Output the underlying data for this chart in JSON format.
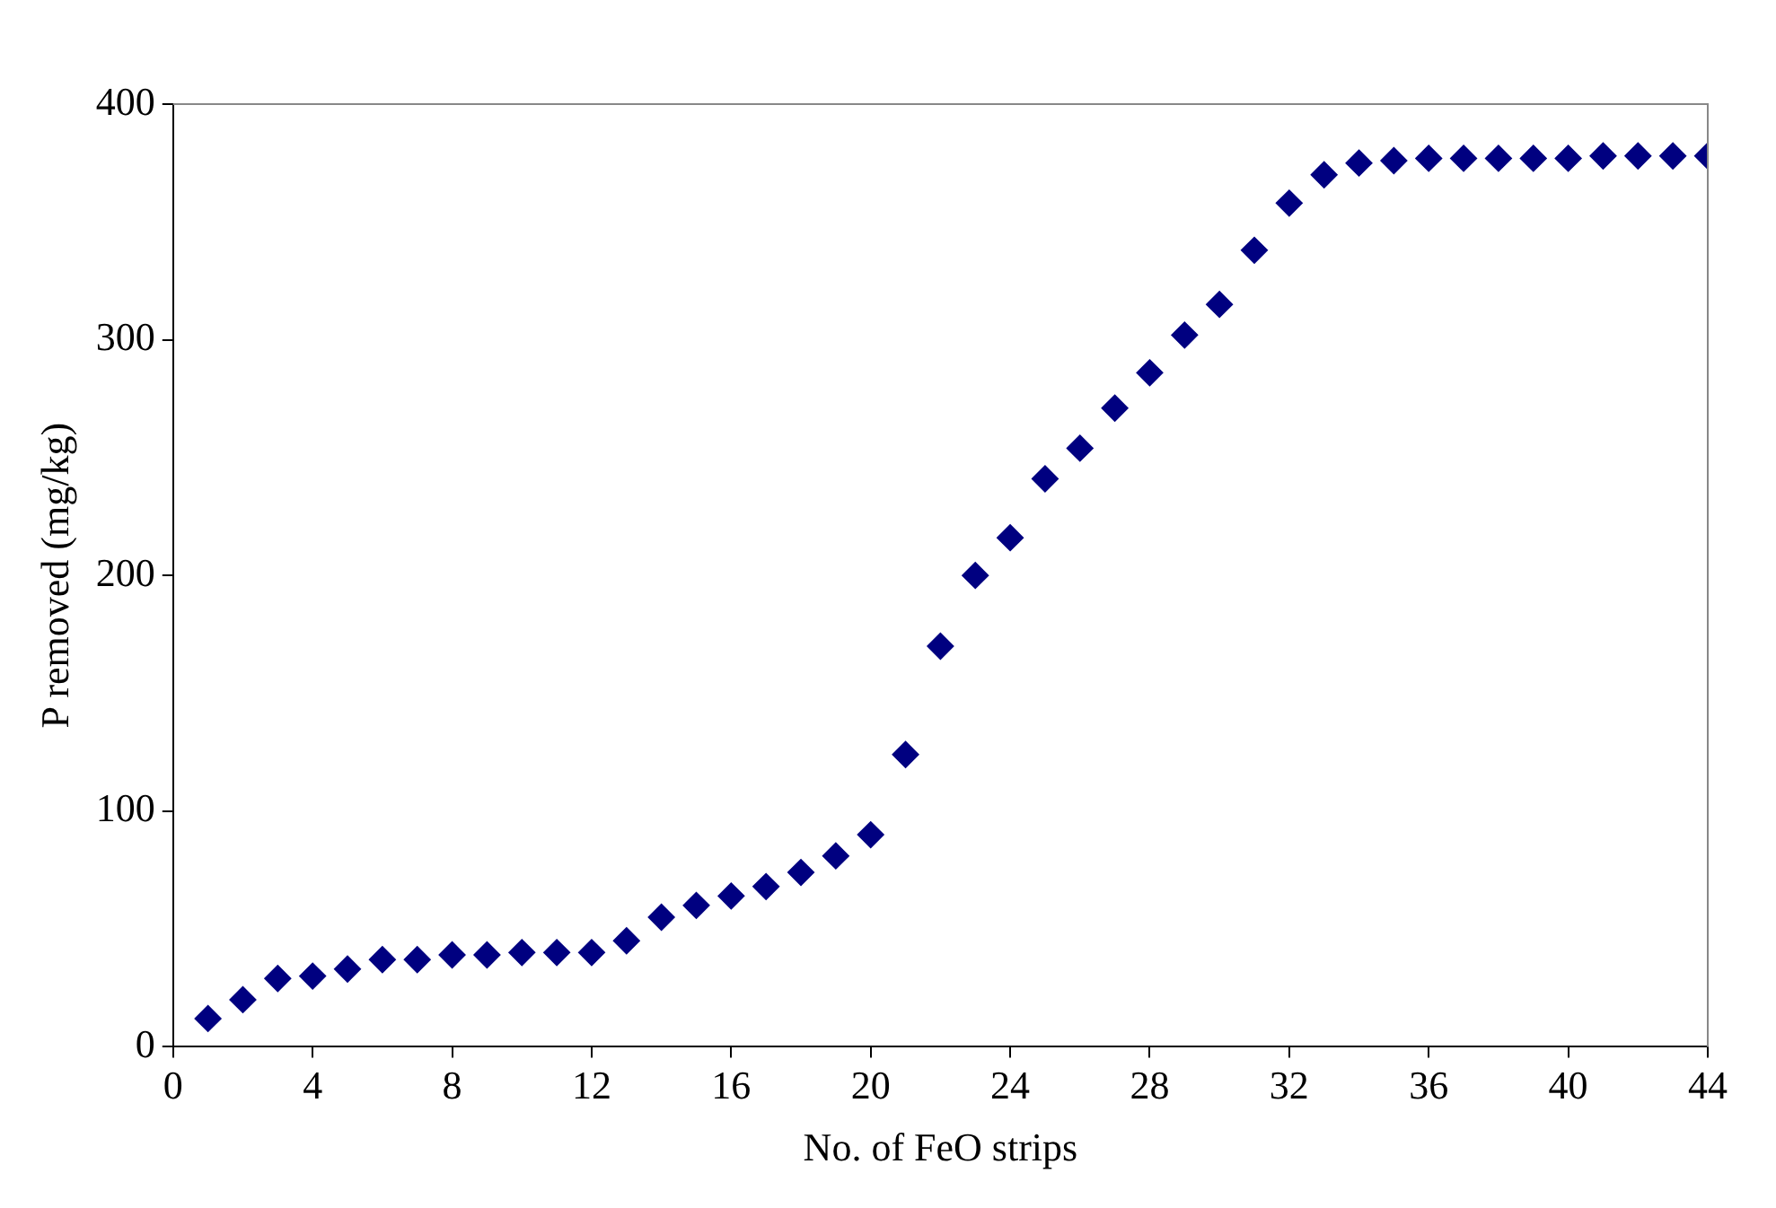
{
  "chart_data": {
    "type": "scatter",
    "xlabel": "No. of FeO strips",
    "ylabel": "P removed (mg/kg)",
    "x": [
      1,
      2,
      3,
      4,
      5,
      6,
      7,
      8,
      9,
      10,
      11,
      12,
      13,
      14,
      15,
      16,
      17,
      18,
      19,
      20,
      21,
      22,
      23,
      24,
      25,
      26,
      27,
      28,
      29,
      30,
      31,
      32,
      33,
      34,
      35,
      36,
      37,
      38,
      39,
      40,
      41,
      42,
      43,
      44
    ],
    "series": [
      {
        "color": "#000080",
        "values": [
          12,
          20,
          29,
          30,
          33,
          37,
          37,
          39,
          39,
          40,
          40,
          40,
          45,
          55,
          60,
          64,
          68,
          74,
          81,
          90,
          124,
          170,
          200,
          216,
          241,
          254,
          271,
          286,
          302,
          315,
          338,
          358,
          370,
          375,
          376,
          377,
          377,
          377,
          377,
          377,
          378,
          378,
          378,
          378
        ]
      }
    ],
    "xlim": [
      0,
      44
    ],
    "xticks": [
      0,
      4,
      8,
      12,
      16,
      20,
      24,
      28,
      32,
      36,
      40,
      44
    ],
    "ylim": [
      0,
      400
    ],
    "yticks": [
      0,
      100,
      200,
      300,
      400
    ],
    "grid": false,
    "legend": false,
    "marker": "diamond"
  }
}
